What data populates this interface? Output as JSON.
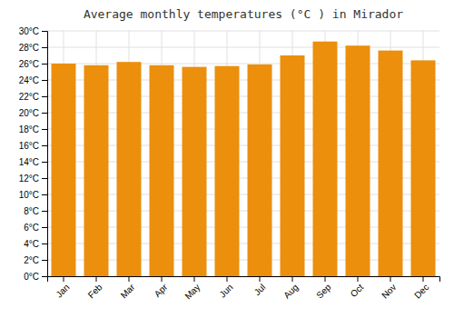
{
  "chart_data": {
    "type": "bar",
    "title": "Average monthly temperatures (°C ) in Mirador",
    "categories": [
      "Jan",
      "Feb",
      "Mar",
      "Apr",
      "May",
      "Jun",
      "Jul",
      "Aug",
      "Sep",
      "Oct",
      "Nov",
      "Dec"
    ],
    "values": [
      26.0,
      25.8,
      26.2,
      25.8,
      25.6,
      25.7,
      25.9,
      27.0,
      28.7,
      28.2,
      27.6,
      26.4
    ],
    "color": "#EB8F0D",
    "ylim": [
      0,
      30
    ],
    "yticks": [
      {
        "value": 0,
        "label": "0°C"
      },
      {
        "value": 2,
        "label": "2°C"
      },
      {
        "value": 4,
        "label": "4°C"
      },
      {
        "value": 6,
        "label": "6°C"
      },
      {
        "value": 8,
        "label": "8°C"
      },
      {
        "value": 10,
        "label": "10°C"
      },
      {
        "value": 12,
        "label": "12°C"
      },
      {
        "value": 14,
        "label": "14°C"
      },
      {
        "value": 16,
        "label": "16°C"
      },
      {
        "value": 18,
        "label": "18°C"
      },
      {
        "value": 20,
        "label": "20°C"
      },
      {
        "value": 22,
        "label": "22°C"
      },
      {
        "value": 24,
        "label": "24°C"
      },
      {
        "value": 26,
        "label": "26°C"
      },
      {
        "value": 28,
        "label": "28°C"
      },
      {
        "value": 30,
        "label": "30°C"
      }
    ],
    "grid": true
  }
}
